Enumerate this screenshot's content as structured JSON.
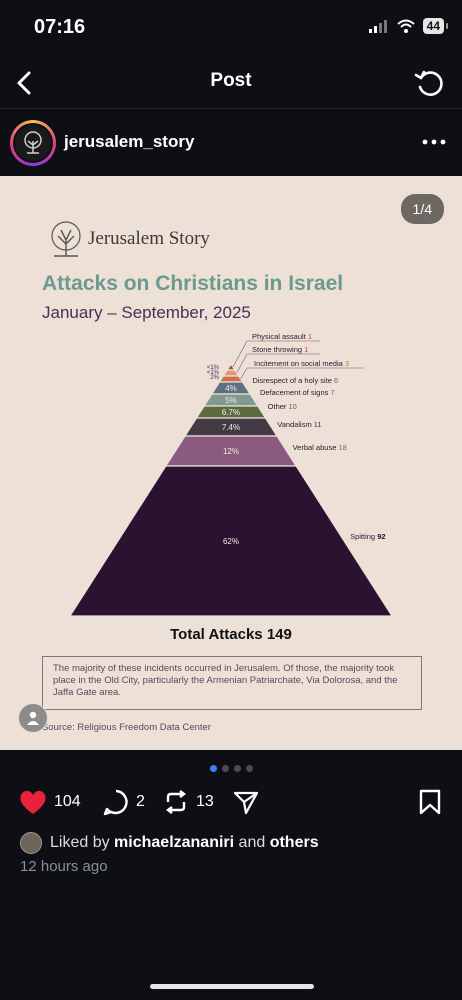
{
  "status": {
    "time": "07:16",
    "battery": "44"
  },
  "nav": {
    "title": "Post"
  },
  "author": {
    "username": "jerusalem_story"
  },
  "image": {
    "page_indicator": "1/4",
    "brand": "Jerusalem Story",
    "headline": "Attacks on Christians in Israel",
    "subhead": "January – September, 2025",
    "total_label": "Total Attacks",
    "total_value": "149",
    "note": "The majority of these incidents occurred in Jerusalem. Of those, the majority took place in the Old City, particularly the Armenian Patriarchate, Via Dolorosa, and the Jaffa Gate area.",
    "source": "Source: Religious Freedom Data Center",
    "segments": [
      {
        "label": "Physical assault",
        "count": "1",
        "pct": "<1%",
        "color": "#c0463c",
        "countColor": "#c0463c"
      },
      {
        "label": "Stone throwing",
        "count": "1",
        "pct": "<1%",
        "color": "#e39a6a",
        "countColor": "#c0463c"
      },
      {
        "label": "Incitement on social media",
        "count": "3",
        "pct": "2%",
        "color": "#d0704a",
        "countColor": "#d0704a"
      },
      {
        "label": "Disrespect of a holy site",
        "count": "6",
        "pct": "4%",
        "color": "#5f6f82",
        "countColor": "#5f6f82"
      },
      {
        "label": "Defacement of signs",
        "count": "7",
        "pct": "5%",
        "color": "#7f9a8f",
        "countColor": "#5f6f82"
      },
      {
        "label": "Other",
        "count": "10",
        "pct": "6.7%",
        "color": "#5b6b3f",
        "countColor": "#5b6b3f"
      },
      {
        "label": "Vandalism",
        "count": "11",
        "pct": "7.4%",
        "color": "#433a45",
        "countColor": "#433a45"
      },
      {
        "label": "Verbal abuse",
        "count": "18",
        "pct": "12%",
        "color": "#8a5a7f",
        "countColor": "#8a5a7f"
      },
      {
        "label": "Spitting",
        "count": "92",
        "pct": "62%",
        "color": "#2a1230",
        "countColor": "#2a1230"
      }
    ]
  },
  "carousel": {
    "count": 4,
    "active": 0
  },
  "actions": {
    "likes": "104",
    "comments": "2",
    "reposts": "13"
  },
  "liked_by": {
    "prefix": "Liked by",
    "user": "michaelzananiri",
    "and": "and",
    "others": "others"
  },
  "time_ago": "12 hours ago",
  "colors": {
    "accent": "#3b82f6",
    "like": "#e8213c",
    "background": "#0d0f14"
  }
}
